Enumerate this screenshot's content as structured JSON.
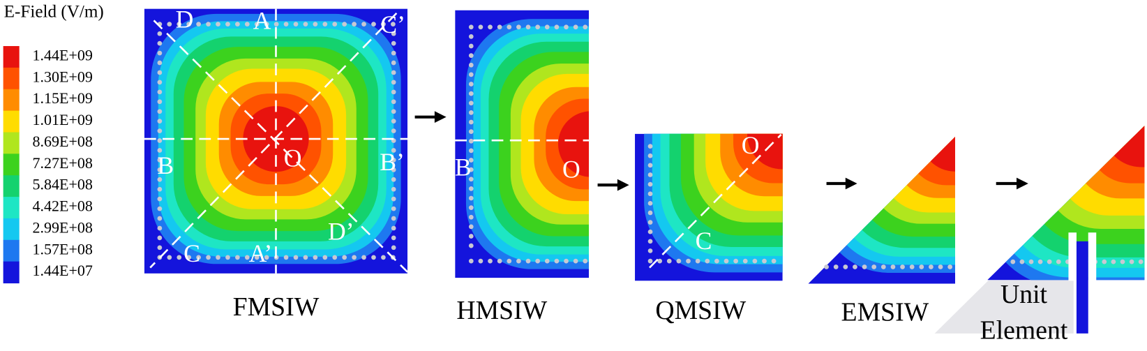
{
  "legend": {
    "title": "E-Field (V/m)",
    "levels": [
      {
        "label": "1.44E+09",
        "color": "#e8130e"
      },
      {
        "label": "1.30E+09",
        "color": "#ff5200"
      },
      {
        "label": "1.15E+09",
        "color": "#ff8c00"
      },
      {
        "label": "1.01E+09",
        "color": "#ffdc00"
      },
      {
        "label": "8.69E+08",
        "color": "#b0e61e"
      },
      {
        "label": "7.27E+08",
        "color": "#3cd21e"
      },
      {
        "label": "5.84E+08",
        "color": "#14d26e"
      },
      {
        "label": "4.42E+08",
        "color": "#1ee6c4"
      },
      {
        "label": "2.99E+08",
        "color": "#14c8f0"
      },
      {
        "label": "1.57E+08",
        "color": "#1e78f0"
      },
      {
        "label": "1.44E+07",
        "color": "#1414dc"
      }
    ]
  },
  "panels": [
    {
      "caption": [
        "FMSIW"
      ],
      "markers": [
        "D",
        "A",
        "C’",
        "B",
        "O",
        "B’",
        "C",
        "A’",
        "D’"
      ]
    },
    {
      "caption": [
        "HMSIW"
      ],
      "markers": [
        "B",
        "O"
      ]
    },
    {
      "caption": [
        "QMSIW"
      ],
      "markers": [
        "O",
        "C"
      ]
    },
    {
      "caption": [
        "EMSIW"
      ],
      "markers": []
    },
    {
      "caption": [
        "Unit",
        "Element"
      ],
      "markers": []
    }
  ]
}
